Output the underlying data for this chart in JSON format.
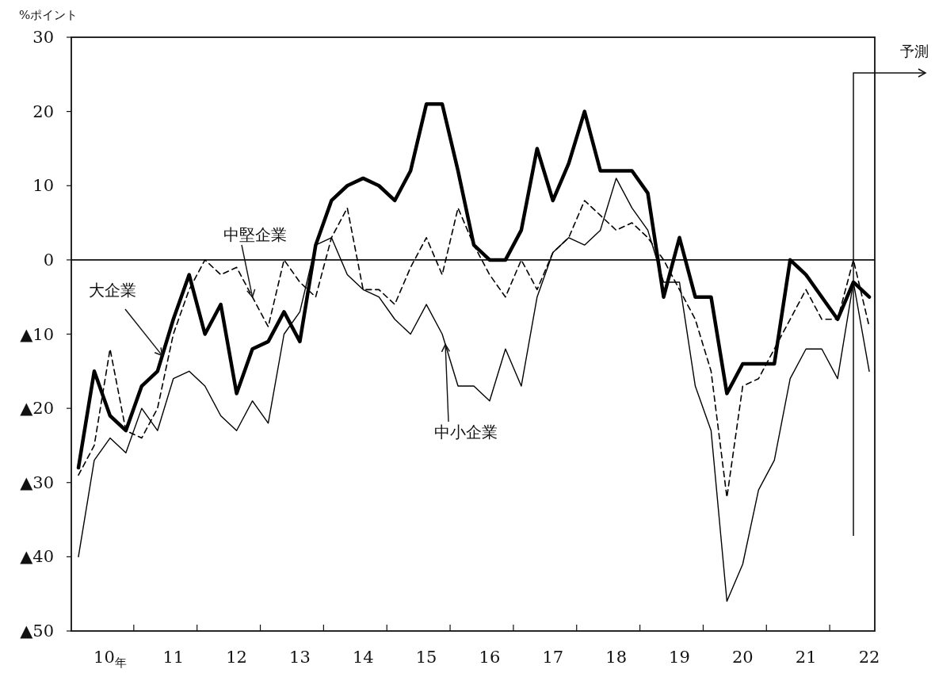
{
  "chart_data": {
    "type": "line",
    "ylabel": "%ポイント",
    "categories": [
      null,
      null,
      "10$_{年}$",
      null,
      null,
      null,
      "11",
      null,
      null,
      null,
      "12",
      null,
      null,
      null,
      "13",
      null,
      null,
      null,
      "14",
      null,
      null,
      null,
      "15",
      null,
      null,
      null,
      "16",
      null,
      null,
      null,
      "17",
      null,
      null,
      null,
      "18",
      null,
      null,
      null,
      "19",
      null,
      null,
      null,
      "20",
      null,
      null,
      null,
      "21",
      null,
      null,
      null,
      "22"
    ],
    "annotations": [
      "予測"
    ],
    "ylim": [
      -50,
      30
    ],
    "yticks": [
      30,
      20,
      10,
      0,
      {
        "value": -10,
        "label": "▲10"
      },
      {
        "value": -20,
        "label": "▲20"
      },
      {
        "value": -30,
        "label": "▲30"
      },
      {
        "value": -40,
        "label": "▲40"
      },
      {
        "value": -50,
        "label": "▲50"
      }
    ],
    "ref_lines": [
      {
        "axis": "y",
        "value": 0
      }
    ],
    "series": [
      {
        "name": "大企業",
        "color": "#000000",
        "line_style": "solid",
        "values": [
          -28,
          -15,
          -21,
          -23,
          -17,
          -15,
          -8,
          -2,
          -10,
          -6,
          -18,
          -12,
          -11,
          -7,
          -11,
          2,
          8,
          10,
          11,
          10,
          8,
          12,
          21,
          21,
          12,
          2,
          0,
          0,
          4,
          15,
          8,
          13,
          20,
          12,
          12,
          12,
          9,
          -5,
          3,
          -5,
          -5,
          -18,
          -14,
          -14,
          -14,
          0,
          -2,
          -5,
          -8,
          -3,
          -5
        ]
      },
      {
        "name": "中堅企業",
        "color": "#000000",
        "line_style": "dashed",
        "values": [
          -29,
          -25,
          -12,
          -23,
          -24,
          -20,
          -10,
          -4,
          0,
          -2,
          -1,
          -5,
          -9,
          0,
          -3,
          -5,
          3,
          7,
          -4,
          -4,
          -6,
          -1,
          3,
          -2,
          7,
          2,
          -2,
          -5,
          0,
          -4,
          1,
          3,
          8,
          6,
          4,
          5,
          3,
          0,
          -4,
          -8,
          -15,
          -32,
          -17,
          -16,
          -12,
          -8,
          -4,
          -8,
          -8,
          0,
          -9
        ]
      },
      {
        "name": "中小企業",
        "color": "#000000",
        "line_style": "solid",
        "values": [
          -40,
          -27,
          -24,
          -26,
          -20,
          -23,
          -16,
          -15,
          -17,
          -21,
          -23,
          -19,
          -22,
          -10,
          -7,
          2,
          3,
          -2,
          -4,
          -5,
          -8,
          -10,
          -6,
          -10,
          -17,
          -17,
          -19,
          -12,
          -17,
          -5,
          1,
          3,
          2,
          4,
          11,
          7,
          4,
          -3,
          -3,
          -17,
          -23,
          -46,
          -41,
          -31,
          -27,
          -16,
          -12,
          -12,
          -16,
          -3,
          -15
        ]
      }
    ]
  }
}
